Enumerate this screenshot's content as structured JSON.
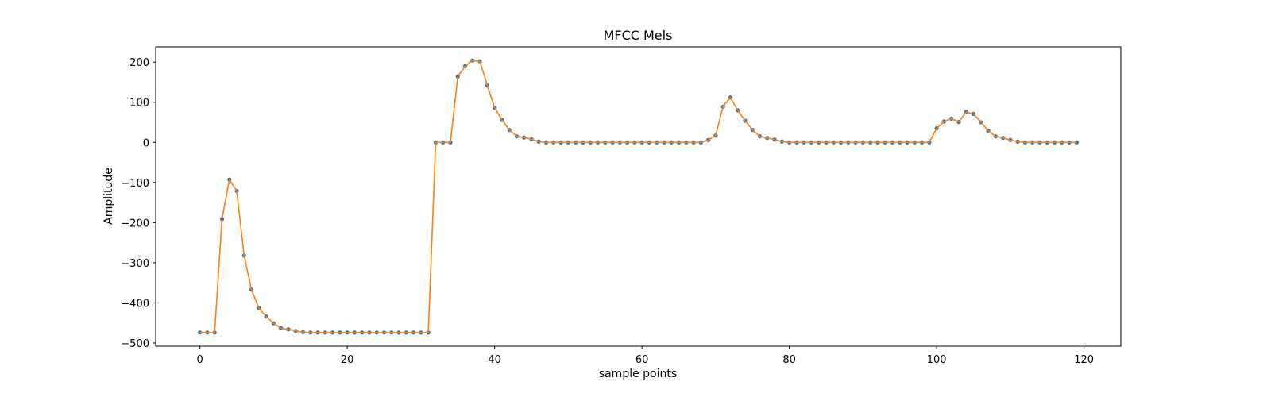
{
  "chart_data": {
    "type": "line",
    "title": "MFCC Mels",
    "xlabel": "sample points",
    "ylabel": "Amplitude",
    "xlim": [
      -6,
      125
    ],
    "ylim": [
      -508,
      238
    ],
    "xticks": [
      0,
      20,
      40,
      60,
      80,
      100,
      120
    ],
    "yticks": [
      -500,
      -400,
      -300,
      -200,
      -100,
      0,
      100,
      200
    ],
    "xtick_labels": [
      "0",
      "20",
      "40",
      "60",
      "80",
      "100",
      "120"
    ],
    "ytick_labels": [
      "−500",
      "−400",
      "−300",
      "−200",
      "−100",
      "0",
      "100",
      "200"
    ],
    "grid": false,
    "legend": "none",
    "series": [
      {
        "style": "markers",
        "color": "#1f77b4",
        "values": [
          -474,
          -474,
          -474,
          -191,
          -93,
          -121,
          -282,
          -367,
          -413,
          -434,
          -451,
          -463,
          -466,
          -470,
          -473,
          -474,
          -474,
          -474,
          -474,
          -474,
          -474,
          -474,
          -474,
          -474,
          -474,
          -474,
          -474,
          -474,
          -474,
          -474,
          -474,
          -474,
          0,
          0,
          0,
          164,
          190,
          204,
          202,
          142,
          86,
          56,
          31,
          15,
          12,
          8,
          2,
          0,
          0,
          0,
          0,
          0,
          0,
          0,
          0,
          0,
          0,
          0,
          0,
          0,
          0,
          0,
          0,
          0,
          0,
          0,
          0,
          0,
          0,
          6,
          17,
          89,
          112,
          80,
          54,
          31,
          15,
          11,
          7,
          2,
          0,
          0,
          0,
          0,
          0,
          0,
          0,
          0,
          0,
          0,
          0,
          0,
          0,
          0,
          0,
          0,
          0,
          0,
          0,
          0,
          35,
          52,
          59,
          51,
          76,
          71,
          50,
          29,
          15,
          11,
          6,
          2,
          0,
          0,
          0,
          0,
          0,
          0,
          0,
          0
        ]
      },
      {
        "style": "line",
        "color": "#ff7f0e",
        "values": [
          -474,
          -474,
          -474,
          -191,
          -93,
          -121,
          -282,
          -367,
          -413,
          -434,
          -451,
          -463,
          -466,
          -470,
          -473,
          -474,
          -474,
          -474,
          -474,
          -474,
          -474,
          -474,
          -474,
          -474,
          -474,
          -474,
          -474,
          -474,
          -474,
          -474,
          -474,
          -474,
          0,
          0,
          0,
          164,
          190,
          204,
          202,
          142,
          86,
          56,
          31,
          15,
          12,
          8,
          2,
          0,
          0,
          0,
          0,
          0,
          0,
          0,
          0,
          0,
          0,
          0,
          0,
          0,
          0,
          0,
          0,
          0,
          0,
          0,
          0,
          0,
          0,
          6,
          17,
          89,
          112,
          80,
          54,
          31,
          15,
          11,
          7,
          2,
          0,
          0,
          0,
          0,
          0,
          0,
          0,
          0,
          0,
          0,
          0,
          0,
          0,
          0,
          0,
          0,
          0,
          0,
          0,
          0,
          35,
          52,
          59,
          51,
          76,
          71,
          50,
          29,
          15,
          11,
          6,
          2,
          0,
          0,
          0,
          0,
          0,
          0,
          0,
          0
        ]
      }
    ]
  }
}
